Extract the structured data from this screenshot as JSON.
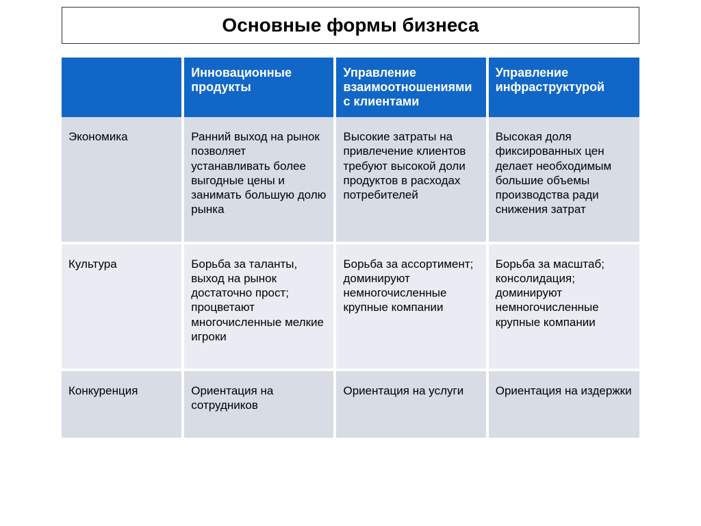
{
  "title": "Основные формы бизнеса",
  "table": {
    "columns": [
      "",
      "Инновационные продукты",
      "Управление взаимоотношениями с клиентами",
      "Управление инфраструктурой"
    ],
    "rows": [
      {
        "label": "Экономика",
        "cells": [
          "Ранний выход на рынок позволяет устанавливать более выгодные цены и занимать большую долю рынка",
          "Высокие затраты на привлечение клиентов требуют высокой доли продуктов в расходах потребителей",
          "Высокая доля фиксированных цен делает необходимым большие объемы производства ради снижения затрат"
        ]
      },
      {
        "label": "Культура",
        "cells": [
          "Борьба за таланты, выход на рынок достаточно прост; процветают многочисленные мелкие игроки",
          "Борьба за ассортимент; доминируют немногочисленные крупные компании",
          "Борьба за масштаб; консолидация; доминируют немногочисленные крупные компании"
        ]
      },
      {
        "label": "Конкуренция",
        "cells": [
          "Ориентация на сотрудников",
          "Ориентация на услуги",
          "Ориентация на издержки"
        ]
      }
    ],
    "style": {
      "type": "table",
      "header_bg": "#1167c8",
      "header_text_color": "#ffffff",
      "row_bg_a": "#d7dce5",
      "row_bg_b": "#e9ecf2",
      "cell_text_color": "#000000",
      "border_gap_color": "#ffffff",
      "title_fontsize": 28,
      "header_fontsize": 18,
      "body_fontsize": 17,
      "col_widths_pct": [
        21,
        26.33,
        26.33,
        26.33
      ],
      "title_border_color": "#333333",
      "page_bg": "#ffffff"
    }
  }
}
